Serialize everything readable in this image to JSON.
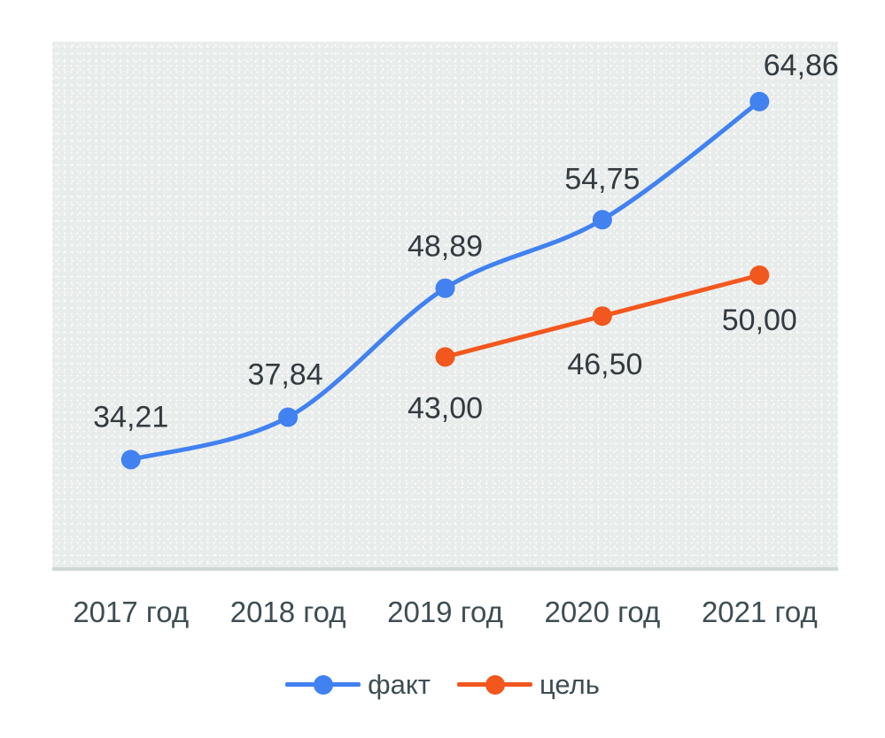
{
  "chart_data": {
    "type": "line",
    "categories": [
      "2017 год",
      "2018 год",
      "2019 год",
      "2020 год",
      "2021 год"
    ],
    "series": [
      {
        "key": "fact",
        "name": "факт",
        "color": "#4181f0",
        "values": [
          34.21,
          37.84,
          48.89,
          54.75,
          64.86
        ],
        "labels": [
          "34,21",
          "37,84",
          "48,89",
          "54,75",
          "64,86"
        ],
        "label_offsets": [
          [
            0,
            -49
          ],
          [
            -3,
            -49
          ],
          [
            0,
            -48
          ],
          [
            0,
            -47
          ],
          [
            47,
            -42
          ]
        ]
      },
      {
        "key": "target",
        "name": "цель",
        "color": "#f2571e",
        "values": [
          null,
          null,
          43.0,
          46.5,
          50.0
        ],
        "labels": [
          null,
          null,
          "43,00",
          "46,50",
          "50,00"
        ],
        "label_offsets": [
          null,
          null,
          [
            0,
            57
          ],
          [
            3,
            54
          ],
          [
            0,
            50
          ]
        ]
      }
    ],
    "ylim": [
      25,
      70
    ],
    "xlabel": "",
    "ylabel": "",
    "title": "",
    "grid": false,
    "smooth_lines": true,
    "marker_radius": 11,
    "line_width": 5,
    "legend_position": "bottom"
  },
  "colors": {
    "plot_bg": "#e8ecea",
    "axis_line": "#cfd8d5",
    "axis_text": "#3e4d53",
    "label_text": "#333b40"
  }
}
